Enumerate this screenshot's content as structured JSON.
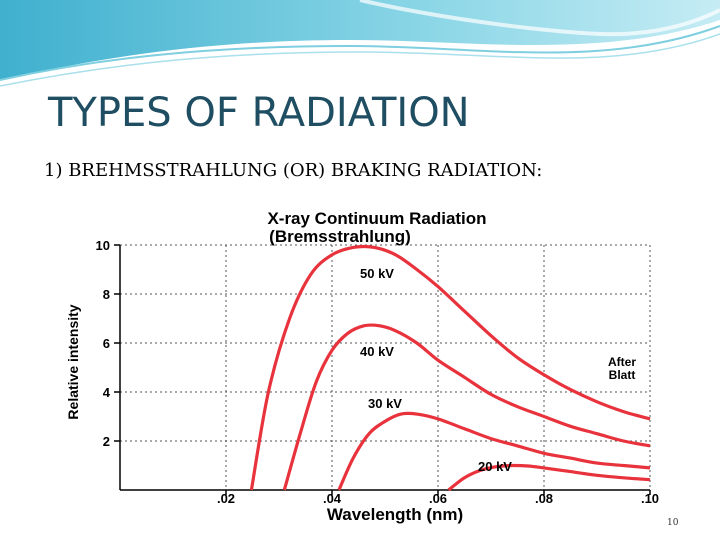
{
  "slide": {
    "title": "TYPES OF RADIATION",
    "subtitle": "1) BREHMSSTRAHLUNG (OR)  BRAKING RADIATION:",
    "number": "10",
    "colors": {
      "title": "#1f4e63",
      "banner": "#5bbfd6",
      "curve": "#e8323c"
    }
  },
  "chart_data": {
    "type": "line",
    "title": "X-ray Continuum Radiation",
    "subtitle": "(Bremsstrahlung)",
    "xlabel": "Wavelength (nm)",
    "ylabel": "Relative intensity",
    "xlim": [
      0,
      0.1
    ],
    "ylim": [
      0,
      10
    ],
    "x_ticks": [
      ".02",
      ".04",
      ".06",
      ".08",
      ".10"
    ],
    "y_ticks": [
      "2",
      "4",
      "6",
      "8",
      "10"
    ],
    "grid": true,
    "annotation": "After Blatt",
    "series": [
      {
        "name": "50 kV",
        "x": [
          0.0248,
          0.028,
          0.032,
          0.036,
          0.04,
          0.044,
          0.048,
          0.052,
          0.056,
          0.06,
          0.065,
          0.07,
          0.075,
          0.08,
          0.085,
          0.09,
          0.095,
          0.1
        ],
        "values": [
          0,
          4.0,
          7.0,
          8.8,
          9.6,
          9.9,
          9.9,
          9.6,
          9.0,
          8.3,
          7.3,
          6.3,
          5.4,
          4.7,
          4.1,
          3.6,
          3.2,
          2.9
        ]
      },
      {
        "name": "40 kV",
        "x": [
          0.031,
          0.034,
          0.037,
          0.04,
          0.043,
          0.046,
          0.049,
          0.052,
          0.056,
          0.06,
          0.065,
          0.07,
          0.075,
          0.08,
          0.085,
          0.09,
          0.095,
          0.1
        ],
        "values": [
          0,
          2.3,
          4.4,
          5.7,
          6.4,
          6.7,
          6.7,
          6.5,
          6.0,
          5.3,
          4.6,
          3.9,
          3.4,
          3.0,
          2.6,
          2.3,
          2.0,
          1.8
        ]
      },
      {
        "name": "30 kV",
        "x": [
          0.0413,
          0.044,
          0.047,
          0.05,
          0.053,
          0.056,
          0.06,
          0.065,
          0.07,
          0.075,
          0.08,
          0.085,
          0.09,
          0.095,
          0.1
        ],
        "values": [
          0,
          1.3,
          2.3,
          2.8,
          3.1,
          3.1,
          2.9,
          2.5,
          2.1,
          1.8,
          1.5,
          1.3,
          1.1,
          1.0,
          0.9
        ]
      },
      {
        "name": "20 kV",
        "x": [
          0.062,
          0.065,
          0.068,
          0.071,
          0.074,
          0.077,
          0.08,
          0.085,
          0.09,
          0.095,
          0.1
        ],
        "values": [
          0,
          0.5,
          0.8,
          0.95,
          1.0,
          0.98,
          0.9,
          0.75,
          0.6,
          0.5,
          0.42
        ]
      }
    ]
  }
}
